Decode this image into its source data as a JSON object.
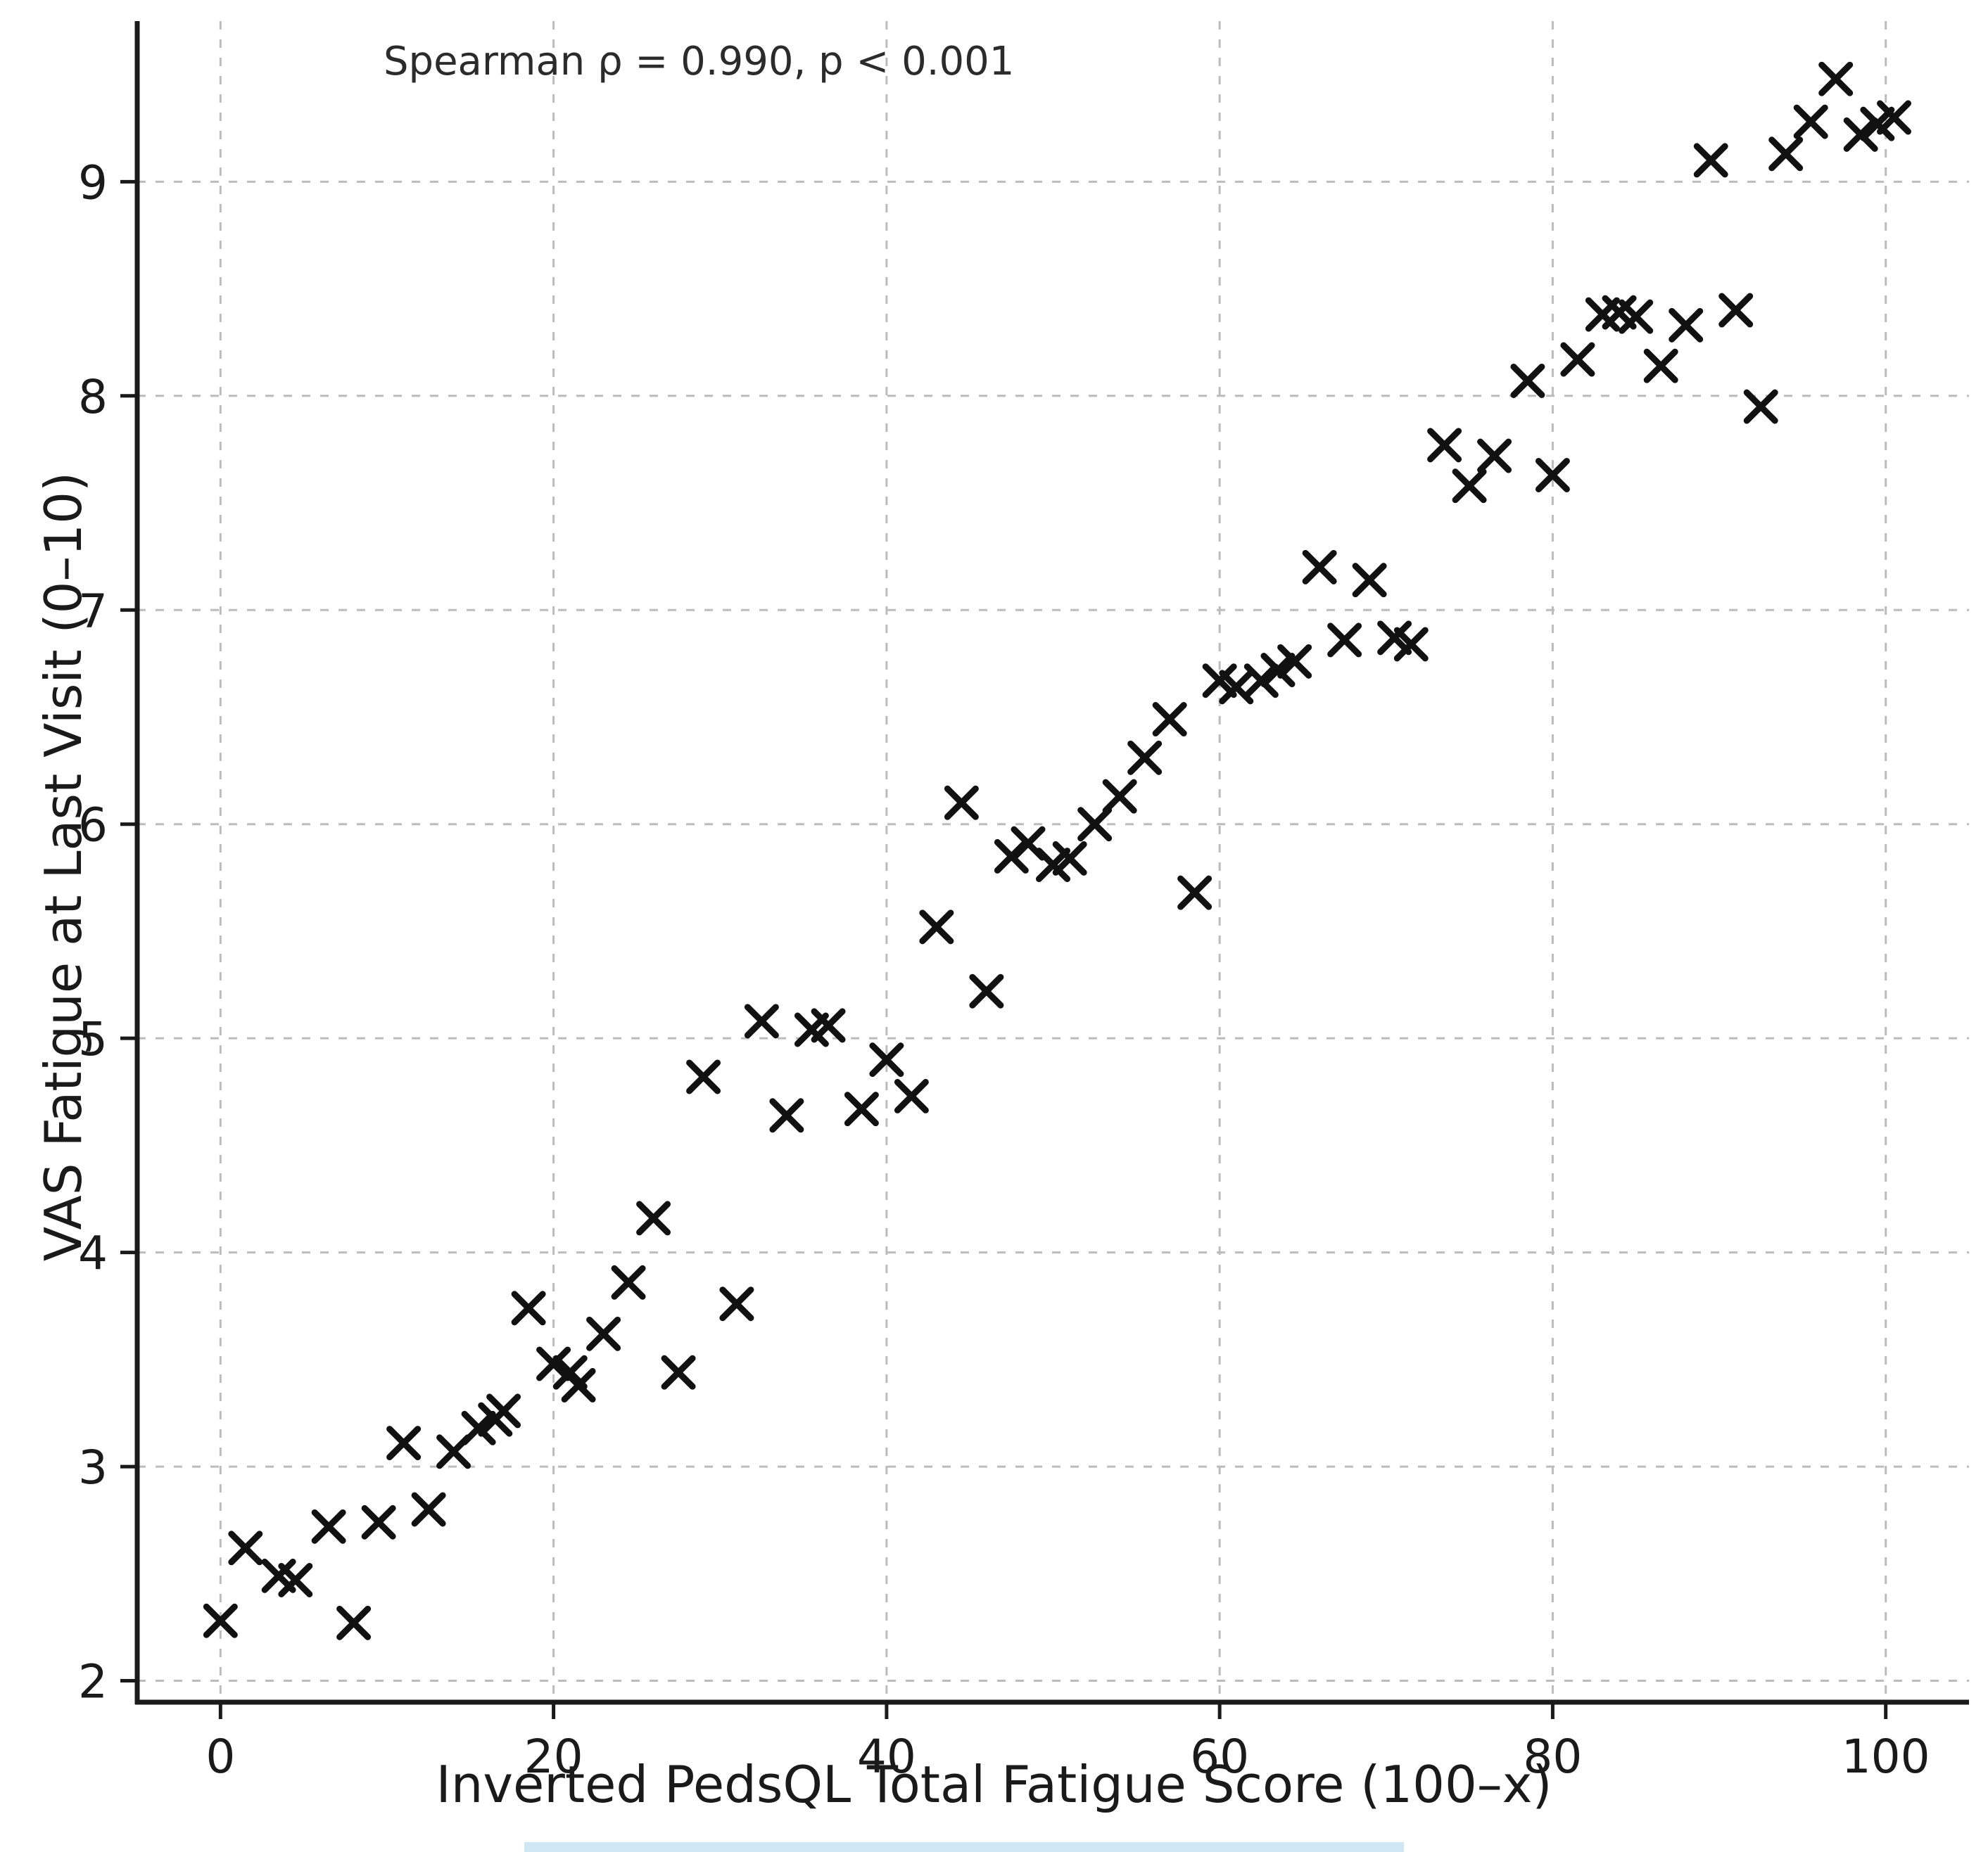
{
  "chart_data": {
    "type": "scatter",
    "title": "",
    "annotation": "Spearman ρ = 0.990, p < 0.001",
    "xlabel": "Inverted PedsQL Total Fatigue Score (100–x)",
    "ylabel": "VAS Fatigue at Last Visit (0–10)",
    "xlim": [
      -5,
      105
    ],
    "ylim": [
      1.9,
      9.75
    ],
    "xticks": [
      0,
      20,
      40,
      60,
      80,
      100
    ],
    "yticks": [
      2,
      3,
      4,
      5,
      6,
      7,
      8,
      9
    ],
    "grid": true,
    "legend": "none",
    "marker": "x",
    "marker_color": "#111111",
    "grid_color": "#bcbcbc",
    "points": [
      [
        0,
        2.28
      ],
      [
        1.5,
        2.62
      ],
      [
        3.5,
        2.49
      ],
      [
        4.5,
        2.47
      ],
      [
        6.5,
        2.72
      ],
      [
        8,
        2.27
      ],
      [
        9.5,
        2.74
      ],
      [
        11,
        3.11
      ],
      [
        12.5,
        2.8
      ],
      [
        14,
        3.07
      ],
      [
        15.5,
        3.18
      ],
      [
        16.5,
        3.22
      ],
      [
        17,
        3.26
      ],
      [
        18.5,
        3.74
      ],
      [
        20,
        3.48
      ],
      [
        21,
        3.44
      ],
      [
        21.5,
        3.38
      ],
      [
        23,
        3.62
      ],
      [
        24.5,
        3.86
      ],
      [
        26,
        4.16
      ],
      [
        27.5,
        3.44
      ],
      [
        29,
        4.82
      ],
      [
        31,
        3.76
      ],
      [
        32.5,
        5.08
      ],
      [
        34,
        4.64
      ],
      [
        35.5,
        5.04
      ],
      [
        36.5,
        5.06
      ],
      [
        38.5,
        4.67
      ],
      [
        40,
        4.9
      ],
      [
        41.5,
        4.73
      ],
      [
        43,
        5.52
      ],
      [
        44.5,
        6.1
      ],
      [
        46,
        5.22
      ],
      [
        47.5,
        5.85
      ],
      [
        48.5,
        5.91
      ],
      [
        50,
        5.81
      ],
      [
        51,
        5.84
      ],
      [
        52.5,
        6.0
      ],
      [
        54,
        6.13
      ],
      [
        55.5,
        6.31
      ],
      [
        57,
        6.49
      ],
      [
        58.5,
        5.68
      ],
      [
        60,
        6.67
      ],
      [
        61,
        6.64
      ],
      [
        62.5,
        6.67
      ],
      [
        63.5,
        6.72
      ],
      [
        64.5,
        6.76
      ],
      [
        66,
        7.2
      ],
      [
        67.5,
        6.86
      ],
      [
        69,
        7.14
      ],
      [
        70.5,
        6.87
      ],
      [
        71.5,
        6.84
      ],
      [
        73.5,
        7.77
      ],
      [
        75,
        7.58
      ],
      [
        76.5,
        7.72
      ],
      [
        78.5,
        8.07
      ],
      [
        80,
        7.63
      ],
      [
        81.5,
        8.17
      ],
      [
        83,
        8.38
      ],
      [
        84,
        8.39
      ],
      [
        85,
        8.37
      ],
      [
        86.5,
        8.14
      ],
      [
        88,
        8.33
      ],
      [
        89.5,
        9.1
      ],
      [
        91,
        8.4
      ],
      [
        92.5,
        7.95
      ],
      [
        94,
        9.13
      ],
      [
        95.5,
        9.28
      ],
      [
        97,
        9.48
      ],
      [
        98.5,
        9.22
      ],
      [
        99.5,
        9.27
      ],
      [
        100.5,
        9.3
      ]
    ]
  }
}
